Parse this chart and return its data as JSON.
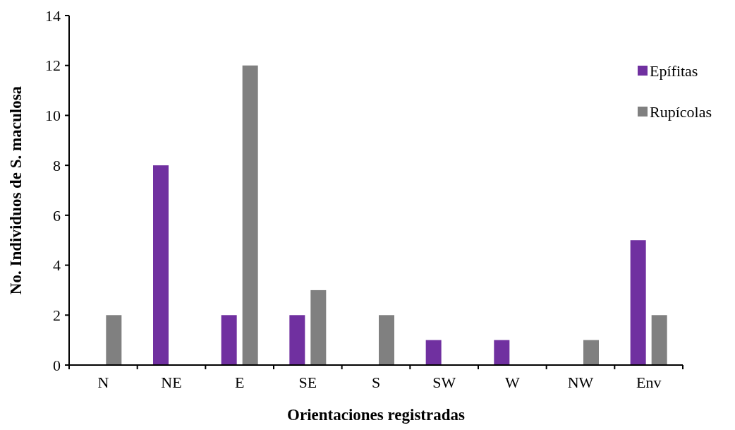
{
  "chart_data": {
    "type": "bar",
    "xlabel": "Orientaciones registradas",
    "ylabel": "No. Individuos de S. maculosa",
    "categories": [
      "N",
      "NE",
      "E",
      "SE",
      "S",
      "SW",
      "W",
      "NW",
      "Env"
    ],
    "series": [
      {
        "name": "Epífitas",
        "color": "#7030a0",
        "values": [
          0,
          8,
          2,
          2,
          0,
          1,
          1,
          0,
          5
        ]
      },
      {
        "name": "Rupícolas",
        "color": "#808080",
        "values": [
          2,
          0,
          12,
          3,
          2,
          0,
          0,
          1,
          2
        ]
      }
    ],
    "ylim": [
      0,
      14
    ],
    "yticks": [
      0,
      2,
      4,
      6,
      8,
      10,
      12,
      14
    ],
    "grid": false,
    "legend": "top right"
  }
}
